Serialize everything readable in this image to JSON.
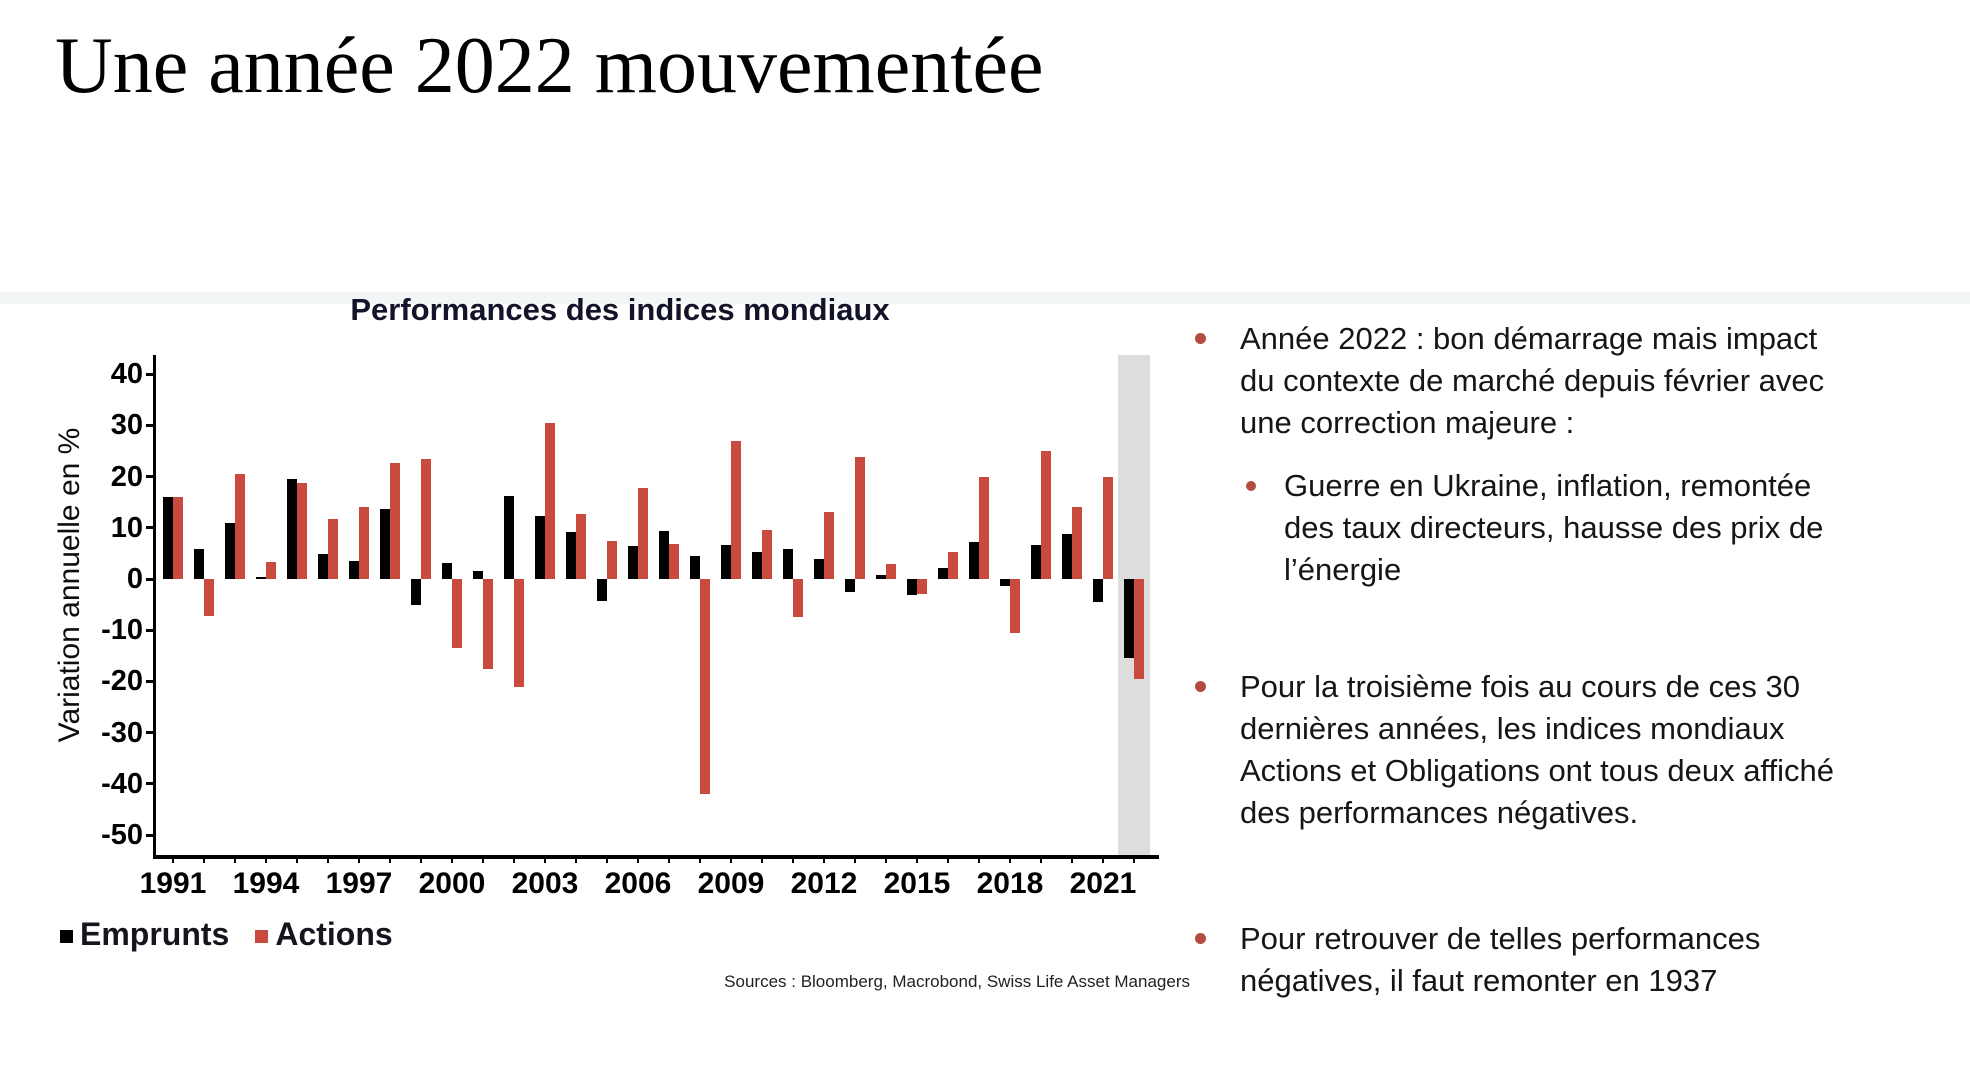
{
  "slide": {
    "title": "Une année 2022 mouvementée"
  },
  "chart": {
    "sources": "Sources : Bloomberg, Macrobond, Swiss Life Asset Managers"
  },
  "chart_data": {
    "type": "bar",
    "title": "Performances des indices mondiaux",
    "ylabel": "Variation annuelle en %",
    "xlabel": "",
    "ylim": [
      -50,
      40
    ],
    "ytick_step": 10,
    "grid": false,
    "legend_position": "bottom-left",
    "categories": [
      1991,
      1992,
      1993,
      1994,
      1995,
      1996,
      1997,
      1998,
      1999,
      2000,
      2001,
      2002,
      2003,
      2004,
      2005,
      2006,
      2007,
      2008,
      2009,
      2010,
      2011,
      2012,
      2013,
      2014,
      2015,
      2016,
      2017,
      2018,
      2019,
      2020,
      2021,
      2022
    ],
    "xtick_labels": [
      "1991",
      "1994",
      "1997",
      "2000",
      "2003",
      "2006",
      "2009",
      "2012",
      "2015",
      "2018",
      "2021"
    ],
    "series": [
      {
        "name": "Emprunts",
        "color": "#000000",
        "values": [
          16,
          5.8,
          11,
          0.3,
          19.5,
          4.8,
          3.5,
          13.7,
          -5,
          3.2,
          1.5,
          16.3,
          12.3,
          9.2,
          -4.2,
          6.5,
          9.4,
          4.5,
          6.6,
          5.3,
          5.8,
          4,
          -2.6,
          0.7,
          -3.2,
          2.1,
          7.2,
          -1.3,
          6.6,
          8.8,
          -4.5,
          -15.5
        ]
      },
      {
        "name": "Actions",
        "color": "#cb4a40",
        "values": [
          16,
          -7.3,
          20.5,
          3.3,
          18.7,
          11.7,
          14,
          22.7,
          23.5,
          -13.5,
          -17.5,
          -21,
          30.5,
          12.7,
          7.4,
          17.8,
          6.8,
          -42,
          27,
          9.5,
          -7.4,
          13,
          23.8,
          2.9,
          -2.9,
          5.2,
          20,
          -10.5,
          25,
          14,
          20,
          -19.5
        ]
      }
    ],
    "highlight": {
      "year": 2022,
      "color": "#dddddd"
    }
  },
  "colors": {
    "accent_red": "#cb4a40",
    "bullet_dot": "#b34b40",
    "highlight_band": "#dddddd"
  },
  "bullets": [
    {
      "level": 1,
      "lines": [
        "Année 2022 : bon démarrage mais impact",
        "du contexte de marché depuis février avec",
        "une correction majeure :"
      ]
    },
    {
      "level": 2,
      "lines": [
        "Guerre en Ukraine, inflation, remontée",
        "des taux directeurs, hausse des prix de",
        "l’énergie"
      ]
    },
    {
      "level": 1,
      "lines": [
        "Pour la troisième fois au cours de ces 30",
        "dernières années, les indices mondiaux",
        "Actions et Obligations ont tous deux affiché",
        "des performances négatives."
      ]
    },
    {
      "level": 1,
      "lines": [
        "Pour retrouver de telles performances",
        "négatives, il faut remonter en 1937"
      ]
    }
  ]
}
